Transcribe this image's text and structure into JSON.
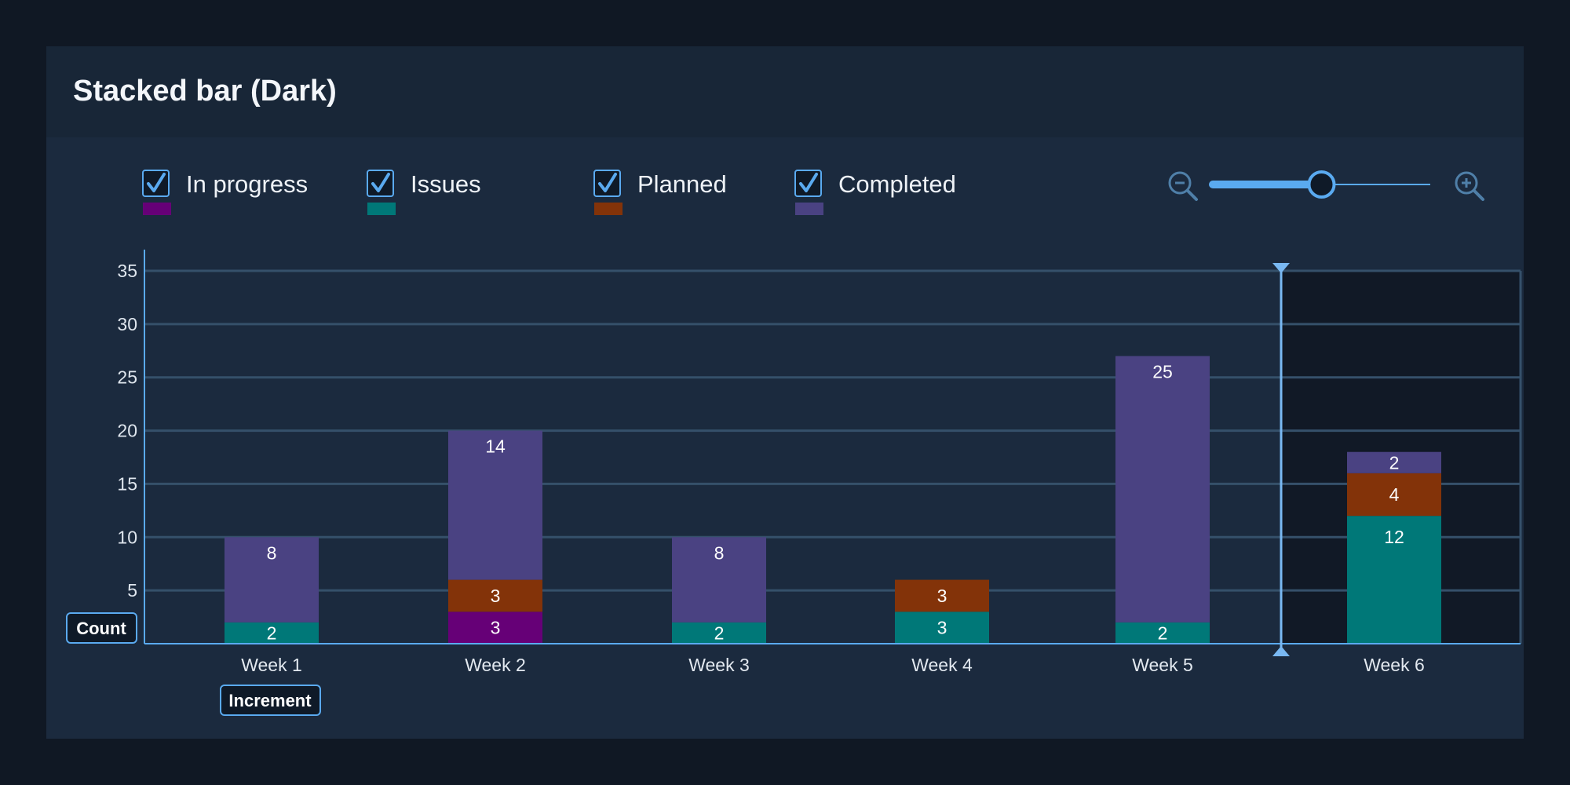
{
  "title": "Stacked bar (Dark)",
  "colors": {
    "in_progress": "#660077",
    "issues": "#007878",
    "planned": "#833309",
    "completed": "#4a4282",
    "accent": "#5aaaf0",
    "grid": "#35506a",
    "highlight_bg": "#111926"
  },
  "legend": [
    {
      "key": "in_progress",
      "label": "In progress",
      "checked": true
    },
    {
      "key": "issues",
      "label": "Issues",
      "checked": true
    },
    {
      "key": "planned",
      "label": "Planned",
      "checked": true
    },
    {
      "key": "completed",
      "label": "Completed",
      "checked": true
    }
  ],
  "zoom": {
    "level": 0.5,
    "zoom_out_icon": "zoom-out-icon",
    "zoom_in_icon": "zoom-in-icon"
  },
  "axis_tags": {
    "y": "Count",
    "x": "Increment"
  },
  "chart_data": {
    "type": "bar",
    "stacked": true,
    "categories": [
      "Week 1",
      "Week 2",
      "Week 3",
      "Week 4",
      "Week 5",
      "Week 6"
    ],
    "series": [
      {
        "key": "in_progress",
        "name": "In progress",
        "values": [
          0,
          3,
          0,
          0,
          0,
          0
        ]
      },
      {
        "key": "issues",
        "name": "Issues",
        "values": [
          2,
          0,
          2,
          3,
          2,
          12
        ]
      },
      {
        "key": "planned",
        "name": "Planned",
        "values": [
          0,
          3,
          0,
          3,
          0,
          4
        ]
      },
      {
        "key": "completed",
        "name": "Completed",
        "values": [
          8,
          14,
          8,
          0,
          25,
          2
        ]
      }
    ],
    "ylim": [
      0,
      35
    ],
    "yticks": [
      5,
      10,
      15,
      20,
      25,
      30,
      35
    ],
    "grid": true,
    "legend_position": "top-left",
    "highlighted_category": "Week 6"
  }
}
